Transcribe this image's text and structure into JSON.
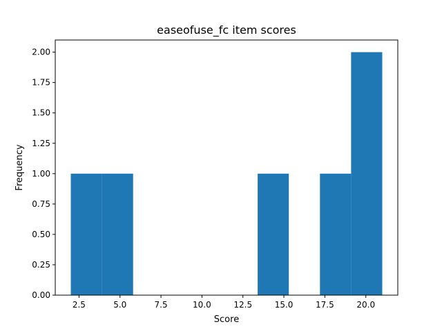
{
  "chart_data": {
    "type": "bar",
    "title": "easeofuse_fc item scores",
    "xlabel": "Score",
    "ylabel": "Frequency",
    "xlim": [
      1.05,
      21.95
    ],
    "ylim": [
      0,
      2.1
    ],
    "bins": [
      {
        "x0": 2.0,
        "x1": 3.9,
        "count": 1
      },
      {
        "x0": 3.9,
        "x1": 5.8,
        "count": 1
      },
      {
        "x0": 5.8,
        "x1": 7.7,
        "count": 0
      },
      {
        "x0": 7.7,
        "x1": 9.6,
        "count": 0
      },
      {
        "x0": 9.6,
        "x1": 11.5,
        "count": 0
      },
      {
        "x0": 11.5,
        "x1": 13.4,
        "count": 0
      },
      {
        "x0": 13.4,
        "x1": 15.3,
        "count": 1
      },
      {
        "x0": 15.3,
        "x1": 17.2,
        "count": 0
      },
      {
        "x0": 17.2,
        "x1": 19.1,
        "count": 1
      },
      {
        "x0": 19.1,
        "x1": 21.0,
        "count": 2
      }
    ],
    "xticks": [
      {
        "value": 2.5,
        "label": "2.5"
      },
      {
        "value": 5.0,
        "label": "5.0"
      },
      {
        "value": 7.5,
        "label": "7.5"
      },
      {
        "value": 10.0,
        "label": "10.0"
      },
      {
        "value": 12.5,
        "label": "12.5"
      },
      {
        "value": 15.0,
        "label": "15.0"
      },
      {
        "value": 17.5,
        "label": "17.5"
      },
      {
        "value": 20.0,
        "label": "20.0"
      }
    ],
    "yticks": [
      {
        "value": 0.0,
        "label": "0.00"
      },
      {
        "value": 0.25,
        "label": "0.25"
      },
      {
        "value": 0.5,
        "label": "0.50"
      },
      {
        "value": 0.75,
        "label": "0.75"
      },
      {
        "value": 1.0,
        "label": "1.00"
      },
      {
        "value": 1.25,
        "label": "1.25"
      },
      {
        "value": 1.5,
        "label": "1.50"
      },
      {
        "value": 1.75,
        "label": "1.75"
      },
      {
        "value": 2.0,
        "label": "2.00"
      }
    ],
    "grid": false,
    "bar_color": "#1f77b4"
  }
}
